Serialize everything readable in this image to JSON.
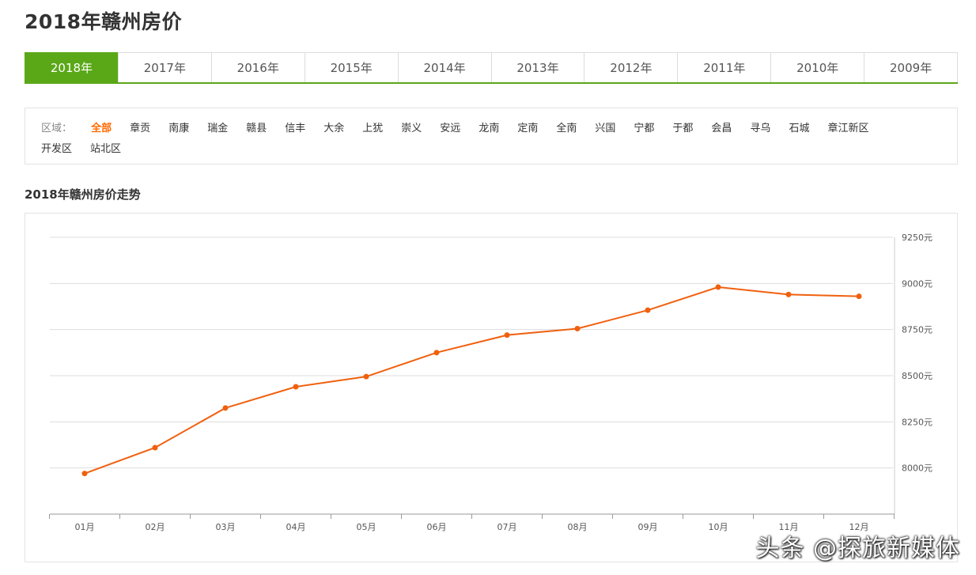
{
  "page": {
    "title": "2018年赣州房价"
  },
  "year_tabs": [
    {
      "label": "2018年",
      "active": true
    },
    {
      "label": "2017年",
      "active": false
    },
    {
      "label": "2016年",
      "active": false
    },
    {
      "label": "2015年",
      "active": false
    },
    {
      "label": "2014年",
      "active": false
    },
    {
      "label": "2013年",
      "active": false
    },
    {
      "label": "2012年",
      "active": false
    },
    {
      "label": "2011年",
      "active": false
    },
    {
      "label": "2010年",
      "active": false
    },
    {
      "label": "2009年",
      "active": false
    }
  ],
  "regions": {
    "label": "区域：",
    "items": [
      {
        "label": "全部",
        "active": true
      },
      {
        "label": "章贡",
        "active": false
      },
      {
        "label": "南康",
        "active": false
      },
      {
        "label": "瑞金",
        "active": false
      },
      {
        "label": "赣县",
        "active": false
      },
      {
        "label": "信丰",
        "active": false
      },
      {
        "label": "大余",
        "active": false
      },
      {
        "label": "上犹",
        "active": false
      },
      {
        "label": "崇义",
        "active": false
      },
      {
        "label": "安远",
        "active": false
      },
      {
        "label": "龙南",
        "active": false
      },
      {
        "label": "定南",
        "active": false
      },
      {
        "label": "全南",
        "active": false
      },
      {
        "label": "兴国",
        "active": false
      },
      {
        "label": "宁都",
        "active": false
      },
      {
        "label": "于都",
        "active": false
      },
      {
        "label": "会昌",
        "active": false
      },
      {
        "label": "寻乌",
        "active": false
      },
      {
        "label": "石城",
        "active": false
      },
      {
        "label": "章江新区",
        "active": false
      },
      {
        "label": "开发区",
        "active": false
      },
      {
        "label": "站北区",
        "active": false
      }
    ]
  },
  "chart_title": "2018年赣州房价走势",
  "watermark": "头条 @探旅新媒体",
  "colors": {
    "accent_green": "#5aa818",
    "line_orange": "#f0600e",
    "active_region": "#ff6a00"
  },
  "chart_data": {
    "type": "line",
    "title": "2018年赣州房价走势",
    "categories": [
      "01月",
      "02月",
      "03月",
      "04月",
      "05月",
      "06月",
      "07月",
      "08月",
      "09月",
      "10月",
      "11月",
      "12月"
    ],
    "series": [
      {
        "values": [
          7970,
          8110,
          8325,
          8440,
          8495,
          8625,
          8720,
          8755,
          8855,
          8980,
          8940,
          8930
        ]
      }
    ],
    "y_ticks": [
      8000,
      8250,
      8500,
      8750,
      9000,
      9250
    ],
    "y_tick_labels": [
      "8000元",
      "8250元",
      "8500元",
      "8750元",
      "9000元",
      "9250元"
    ],
    "ylim": [
      7750,
      9250
    ],
    "y_axis_position": "right",
    "grid": true
  }
}
